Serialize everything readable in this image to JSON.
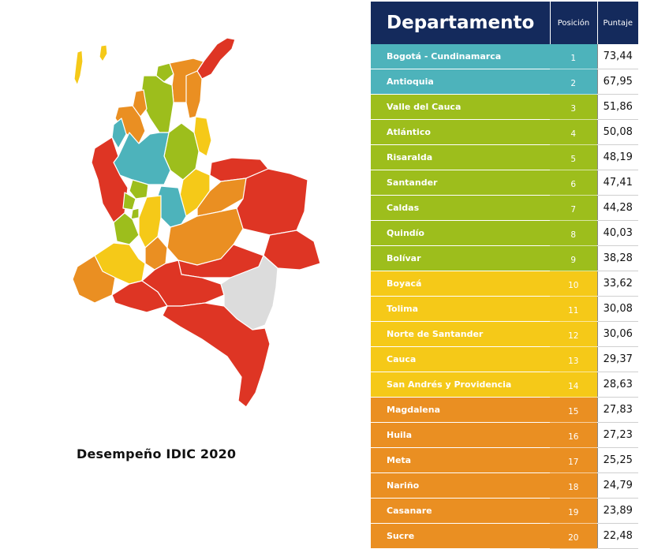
{
  "caption": "Desempeño IDIC 2020",
  "colors": {
    "header": "#142a5c",
    "teal": "#4db3bb",
    "green": "#9dbe1c",
    "yellow": "#f5c918",
    "orange": "#ea8f22",
    "red": "#de3524",
    "gray": "#dcdcdc"
  },
  "table": {
    "headers": {
      "departamento": "Departamento",
      "posicion": "Posición",
      "puntaje": "Puntaje"
    },
    "rows": [
      {
        "name": "Bogotá - Cundinamarca",
        "pos": "1",
        "score": "73,44",
        "tier": "teal"
      },
      {
        "name": "Antioquia",
        "pos": "2",
        "score": "67,95",
        "tier": "teal"
      },
      {
        "name": "Valle del Cauca",
        "pos": "3",
        "score": "51,86",
        "tier": "green"
      },
      {
        "name": "Atlántico",
        "pos": "4",
        "score": "50,08",
        "tier": "green"
      },
      {
        "name": "Risaralda",
        "pos": "5",
        "score": "48,19",
        "tier": "green"
      },
      {
        "name": "Santander",
        "pos": "6",
        "score": "47,41",
        "tier": "green"
      },
      {
        "name": "Caldas",
        "pos": "7",
        "score": "44,28",
        "tier": "green"
      },
      {
        "name": "Quindío",
        "pos": "8",
        "score": "40,03",
        "tier": "green"
      },
      {
        "name": "Bolívar",
        "pos": "9",
        "score": "38,28",
        "tier": "green"
      },
      {
        "name": "Boyacá",
        "pos": "10",
        "score": "33,62",
        "tier": "yellow"
      },
      {
        "name": "Tolima",
        "pos": "11",
        "score": "30,08",
        "tier": "yellow"
      },
      {
        "name": "Norte de Santander",
        "pos": "12",
        "score": "30,06",
        "tier": "yellow"
      },
      {
        "name": "Cauca",
        "pos": "13",
        "score": "29,37",
        "tier": "yellow"
      },
      {
        "name": "San Andrés y Providencia",
        "pos": "14",
        "score": "28,63",
        "tier": "yellow"
      },
      {
        "name": "Magdalena",
        "pos": "15",
        "score": "27,83",
        "tier": "orange"
      },
      {
        "name": "Huila",
        "pos": "16",
        "score": "27,23",
        "tier": "orange"
      },
      {
        "name": "Meta",
        "pos": "17",
        "score": "25,25",
        "tier": "orange"
      },
      {
        "name": "Nariño",
        "pos": "18",
        "score": "24,79",
        "tier": "orange"
      },
      {
        "name": "Casanare",
        "pos": "19",
        "score": "23,89",
        "tier": "orange"
      },
      {
        "name": "Sucre",
        "pos": "20",
        "score": "22,48",
        "tier": "orange"
      }
    ]
  }
}
